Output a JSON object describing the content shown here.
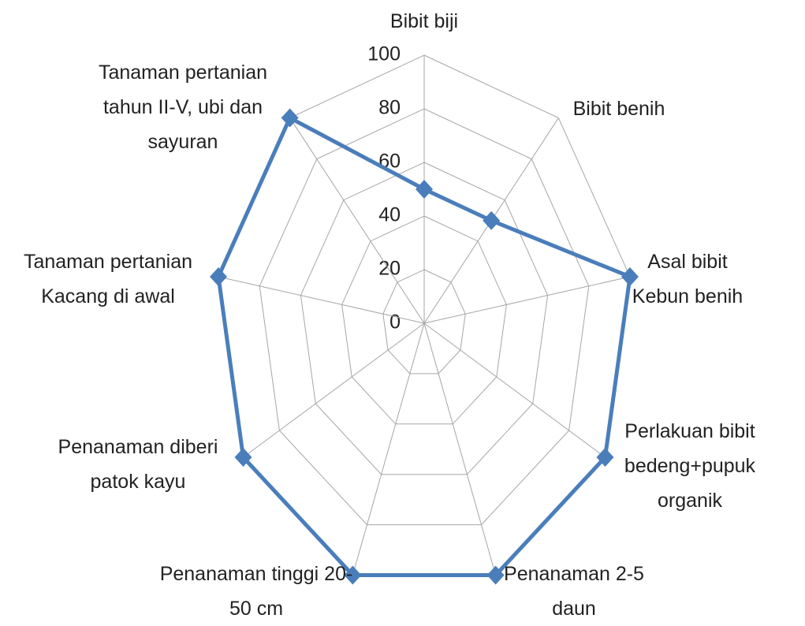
{
  "chart_data": {
    "type": "radar",
    "categories": [
      "Bibit biji",
      "Bibit benih",
      "Asal bibit Kebun benih",
      "Perlakuan bibit bedeng+pupuk organik",
      "Penanaman 2-5 daun",
      "Penanaman tinggi 20-50 cm",
      "Penanaman diberi patok kayu",
      "Tanaman pertanian Kacang di awal",
      "Tanaman pertanian tahun II-V, ubi dan sayuran"
    ],
    "series": [
      {
        "color": "#4a7ebb",
        "values": [
          50,
          50,
          100,
          100,
          100,
          100,
          100,
          100,
          100
        ]
      }
    ],
    "ylim": [
      0,
      100
    ],
    "yticks": [
      0,
      20,
      40,
      60,
      80,
      100
    ],
    "grid": true
  }
}
